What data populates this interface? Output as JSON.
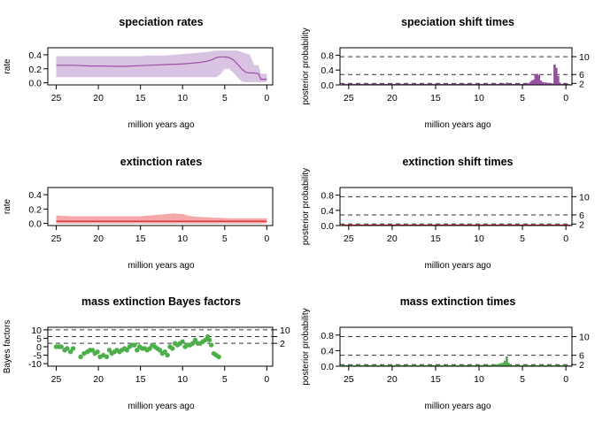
{
  "chart_data": [
    {
      "id": "spec-rates",
      "type": "area",
      "title": "speciation rates",
      "xlabel": "million years ago",
      "ylabel": "rate",
      "xlim": [
        26,
        -0.7
      ],
      "ylim": [
        -0.03,
        0.5
      ],
      "xticks": [
        "25",
        "20",
        "15",
        "10",
        "5",
        "0"
      ],
      "yticks": [
        "0.0",
        "0.2",
        "0.4"
      ],
      "band_color": "#d9c3e3",
      "line_color": "#984ea3",
      "series": [
        {
          "x": [
            25,
            24,
            23,
            22,
            21,
            20,
            19,
            18,
            17,
            16,
            15,
            14,
            13,
            12,
            11,
            10,
            9,
            8,
            7,
            6.5,
            6,
            5.5,
            5,
            4.5,
            4,
            3.5,
            3,
            2.5,
            2,
            1.5,
            1,
            0.7,
            0.5,
            0
          ],
          "mean": [
            0.25,
            0.25,
            0.25,
            0.245,
            0.24,
            0.24,
            0.238,
            0.235,
            0.235,
            0.24,
            0.245,
            0.25,
            0.255,
            0.26,
            0.265,
            0.27,
            0.28,
            0.29,
            0.31,
            0.33,
            0.36,
            0.37,
            0.37,
            0.36,
            0.33,
            0.27,
            0.2,
            0.15,
            0.14,
            0.14,
            0.13,
            0.05,
            0.05,
            0.05
          ],
          "lower": [
            0.08,
            0.08,
            0.08,
            0.08,
            0.08,
            0.08,
            0.08,
            0.08,
            0.08,
            0.08,
            0.08,
            0.08,
            0.08,
            0.08,
            0.08,
            0.08,
            0.08,
            0.08,
            0.08,
            0.08,
            0.08,
            0.12,
            0.2,
            0.2,
            0.15,
            0.08,
            0.02,
            0.01,
            0.01,
            0.01,
            0.01,
            0.01,
            0.01,
            0.01
          ],
          "upper": [
            0.38,
            0.38,
            0.38,
            0.38,
            0.38,
            0.38,
            0.38,
            0.38,
            0.38,
            0.38,
            0.38,
            0.39,
            0.39,
            0.39,
            0.4,
            0.41,
            0.42,
            0.43,
            0.44,
            0.45,
            0.46,
            0.46,
            0.46,
            0.46,
            0.46,
            0.46,
            0.44,
            0.42,
            0.4,
            0.25,
            0.25,
            0.14,
            0.13,
            0.13
          ]
        }
      ]
    },
    {
      "id": "spec-shift",
      "type": "bar",
      "title": "speciation shift times",
      "xlabel": "million years ago",
      "ylabel": "posterior probability",
      "xlim": [
        26,
        -0.7
      ],
      "ylim": [
        0,
        1.0
      ],
      "xticks": [
        "25",
        "20",
        "15",
        "10",
        "5",
        "0"
      ],
      "yticks": [
        "0.0",
        "0.4",
        "0.8"
      ],
      "bar_color": "#984ea3",
      "thresholds": [
        {
          "label": "10",
          "value": 0.76
        },
        {
          "label": "6",
          "value": 0.28
        },
        {
          "label": "2",
          "value": 0.04
        }
      ],
      "x": [
        10.1,
        9.3,
        8.5,
        7.6,
        7.2,
        6.8,
        6.6,
        4.4,
        4.1,
        3.9,
        3.7,
        3.5,
        3.3,
        3.1,
        2.9,
        2.7,
        2.4,
        2.2,
        1.9,
        1.6,
        1.3,
        1.1,
        0.9,
        0.7
      ],
      "values": [
        0.01,
        0.01,
        0.01,
        0.02,
        0.04,
        0.06,
        0.03,
        0.04,
        0.08,
        0.12,
        0.14,
        0.27,
        0.3,
        0.26,
        0.12,
        0.08,
        0.07,
        0.06,
        0.05,
        0.04,
        0.55,
        0.46,
        0.24,
        0.06
      ]
    },
    {
      "id": "ext-rates",
      "type": "area",
      "title": "extinction rates",
      "xlabel": "million years ago",
      "ylabel": "rate",
      "xlim": [
        26,
        -0.7
      ],
      "ylim": [
        -0.03,
        0.5
      ],
      "xticks": [
        "25",
        "20",
        "15",
        "10",
        "5",
        "0"
      ],
      "yticks": [
        "0.0",
        "0.2",
        "0.4"
      ],
      "band_color": "#f4a8a8",
      "line_color": "#e41a1c",
      "series": [
        {
          "x": [
            25,
            23,
            21,
            19,
            17,
            15,
            13,
            11,
            10,
            9,
            8,
            6,
            4,
            2,
            0
          ],
          "mean": [
            0.03,
            0.03,
            0.03,
            0.03,
            0.03,
            0.03,
            0.03,
            0.03,
            0.03,
            0.03,
            0.03,
            0.03,
            0.03,
            0.03,
            0.03
          ],
          "lower": [
            0,
            0,
            0,
            0,
            0,
            0,
            0,
            0,
            0,
            0,
            0,
            0,
            0,
            0,
            0
          ],
          "upper": [
            0.11,
            0.1,
            0.1,
            0.1,
            0.1,
            0.1,
            0.12,
            0.14,
            0.13,
            0.1,
            0.09,
            0.08,
            0.07,
            0.07,
            0.07
          ]
        }
      ]
    },
    {
      "id": "ext-shift",
      "type": "bar",
      "title": "extinction shift times",
      "xlabel": "million years ago",
      "ylabel": "posterior probability",
      "xlim": [
        26,
        -0.7
      ],
      "ylim": [
        0,
        1.0
      ],
      "xticks": [
        "25",
        "20",
        "15",
        "10",
        "5",
        "0"
      ],
      "yticks": [
        "0.0",
        "0.4",
        "0.8"
      ],
      "bar_color": "#e41a1c",
      "thresholds": [
        {
          "label": "10",
          "value": 0.76
        },
        {
          "label": "6",
          "value": 0.28
        },
        {
          "label": "2",
          "value": 0.04
        }
      ],
      "x": [
        25,
        23,
        21,
        19,
        17,
        15,
        13,
        11,
        9,
        7,
        5,
        3,
        1
      ],
      "values": [
        0.01,
        0.01,
        0.01,
        0.01,
        0.01,
        0.01,
        0.01,
        0.01,
        0.01,
        0.01,
        0.01,
        0.01,
        0.01
      ]
    },
    {
      "id": "mass-bf",
      "type": "scatter",
      "title": "mass extinction Bayes factors",
      "xlabel": "million years ago",
      "ylabel": "Bayes factors",
      "xlim": [
        26,
        -0.7
      ],
      "ylim": [
        -11.5,
        11.5
      ],
      "xticks": [
        "25",
        "20",
        "15",
        "10",
        "5",
        "0"
      ],
      "yticks": [
        "-10",
        "-5",
        "0",
        "5",
        "10"
      ],
      "point_color": "#4daf4a",
      "thresholds": [
        {
          "label": "10",
          "value": 10.0
        },
        {
          "label": "",
          "value": 6.0
        },
        {
          "label": "2",
          "value": 2.0
        }
      ],
      "x": [
        25.0,
        24.7,
        24.4,
        24.0,
        23.7,
        23.3,
        23.0,
        22.1,
        21.7,
        21.3,
        21.0,
        20.7,
        20.4,
        20.1,
        19.8,
        19.4,
        19.0,
        18.7,
        18.4,
        18.1,
        17.8,
        17.5,
        17.2,
        16.9,
        16.6,
        16.3,
        16.0,
        15.7,
        15.4,
        15.1,
        14.8,
        14.5,
        14.2,
        13.9,
        13.6,
        13.3,
        13.0,
        12.7,
        12.4,
        12.1,
        11.8,
        11.5,
        11.2,
        10.9,
        10.6,
        10.3,
        10.0,
        9.7,
        9.4,
        9.1,
        8.8,
        8.5,
        8.2,
        7.9,
        7.6,
        7.3,
        7.0,
        6.8,
        6.6,
        6.3,
        6.0,
        5.7
      ],
      "values": [
        0.0,
        0.0,
        0.0,
        -2.0,
        -1.0,
        -3.0,
        -1.0,
        -6.0,
        -4.0,
        -3.0,
        -2.0,
        -2.0,
        -4.0,
        -3.0,
        -6.0,
        -5.0,
        -6.0,
        -2.0,
        -4.0,
        -3.0,
        -2.0,
        -3.0,
        -2.0,
        -1.0,
        -2.0,
        0.0,
        1.0,
        1.0,
        -2.0,
        0.0,
        -1.0,
        -1.0,
        -2.0,
        -1.0,
        1.0,
        0.0,
        -1.0,
        -2.0,
        -4.0,
        -3.0,
        -5.0,
        0.0,
        -1.0,
        2.0,
        1.0,
        2.0,
        3.0,
        0.0,
        1.0,
        1.0,
        2.0,
        4.0,
        2.0,
        2.0,
        3.0,
        4.0,
        6.0,
        4.0,
        1.0,
        -4.0,
        -5.0,
        -6.0
      ]
    },
    {
      "id": "mass-times",
      "type": "bar",
      "title": "mass extinction times",
      "xlabel": "million years ago",
      "ylabel": "posterior probability",
      "xlim": [
        26,
        -0.7
      ],
      "ylim": [
        0,
        1.0
      ],
      "xticks": [
        "25",
        "20",
        "15",
        "10",
        "5",
        "0"
      ],
      "yticks": [
        "0.0",
        "0.4",
        "0.8"
      ],
      "bar_color": "#4daf4a",
      "thresholds": [
        {
          "label": "10",
          "value": 0.76
        },
        {
          "label": "6",
          "value": 0.28
        },
        {
          "label": "2",
          "value": 0.04
        }
      ],
      "x": [
        15.2,
        10.0,
        9.7,
        9.3,
        8.9,
        8.5,
        8.1,
        7.8,
        7.5,
        7.2,
        7.0,
        6.8,
        6.6
      ],
      "values": [
        0.02,
        0.02,
        0.03,
        0.02,
        0.03,
        0.04,
        0.05,
        0.06,
        0.08,
        0.1,
        0.14,
        0.25,
        0.09
      ]
    }
  ]
}
